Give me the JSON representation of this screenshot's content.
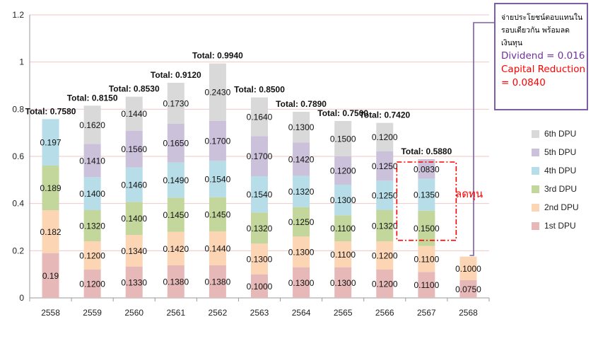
{
  "chart_data": {
    "type": "bar",
    "stacked": true,
    "categories": [
      "2558",
      "2559",
      "2560",
      "2561",
      "2562",
      "2563",
      "2564",
      "2565",
      "2566",
      "2567",
      "2568"
    ],
    "ylim": [
      0,
      1.2
    ],
    "y_ticks": [
      "0",
      "0.2",
      "0.4",
      "0.6",
      "0.8",
      "1",
      "1.2"
    ],
    "grid": true,
    "legend_position": "right",
    "series": [
      {
        "name": "1st DPU",
        "color": "#e6b9b8",
        "values": [
          0.19,
          0.12,
          0.133,
          0.138,
          0.138,
          0.1,
          0.13,
          0.13,
          0.12,
          0.11,
          0.075
        ],
        "labels": [
          "0.19",
          "0.1200",
          "0.1330",
          "0.1380",
          "0.1380",
          "0.1000",
          "0.1300",
          "0.1300",
          "0.1200",
          "0.1100",
          "0.0750"
        ]
      },
      {
        "name": "2nd DPU",
        "color": "#fcd5b5",
        "values": [
          0.182,
          0.12,
          0.134,
          0.142,
          0.144,
          0.13,
          0.13,
          0.11,
          0.12,
          0.11,
          0.1
        ],
        "labels": [
          "0.182",
          "0.1200",
          "0.1340",
          "0.1420",
          "0.1440",
          "0.1300",
          "0.1300",
          "0.1100",
          "0.1200",
          "0.1100",
          "0.1000"
        ]
      },
      {
        "name": "3rd DPU",
        "color": "#c3d69b",
        "values": [
          0.189,
          0.132,
          0.14,
          0.145,
          0.145,
          0.132,
          0.125,
          0.11,
          0.132,
          0.15,
          null
        ],
        "labels": [
          "0.189",
          "0.1320",
          "0.1400",
          "0.1450",
          "0.1450",
          "0.1320",
          "0.1250",
          "0.1100",
          "0.1320",
          "0.1500",
          ""
        ]
      },
      {
        "name": "4th DPU",
        "color": "#b7dee8",
        "values": [
          0.197,
          0.14,
          0.146,
          0.149,
          0.154,
          0.154,
          0.132,
          0.13,
          0.125,
          0.135,
          null
        ],
        "labels": [
          "0.197",
          "0.1400",
          "0.1460",
          "0.1490",
          "0.1540",
          "0.1540",
          "0.1320",
          "0.1300",
          "0.1250",
          "0.1350",
          ""
        ]
      },
      {
        "name": "5th DPU",
        "color": "#ccc1da",
        "values": [
          null,
          0.141,
          0.156,
          0.165,
          0.17,
          0.17,
          0.142,
          0.12,
          0.125,
          0.083,
          null
        ],
        "labels": [
          "",
          "0.1410",
          "0.1560",
          "0.1650",
          "0.1700",
          "0.1700",
          "0.1420",
          "0.1200",
          "0.1250",
          "0.0830",
          ""
        ]
      },
      {
        "name": "6th DPU",
        "color": "#d9d9d9",
        "values": [
          null,
          0.162,
          0.144,
          0.173,
          0.243,
          0.164,
          0.13,
          0.15,
          0.12,
          null,
          null
        ],
        "labels": [
          "",
          "0.1620",
          "0.1440",
          "0.1730",
          "0.2430",
          "0.1640",
          "0.1300",
          "0.1500",
          "0.1200",
          "",
          ""
        ]
      }
    ],
    "totals": [
      0.758,
      0.815,
      0.853,
      0.912,
      0.994,
      0.85,
      0.789,
      0.75,
      0.742,
      0.588,
      null
    ],
    "total_labels": [
      "Total: 0.7580",
      "Total: 0.8150",
      "Total: 0.8530",
      "Total: 0.9120",
      "Total: 0.9940",
      "Total: 0.8500",
      "Total: 0.7890",
      "Total: 0.7500",
      "Total: 0.7420",
      "Total: 0.5880",
      ""
    ]
  },
  "annotation": {
    "note_thai": "จ่ายประโยชน์ตอบแทนใน\nรอบเดียวกัน พร้อมลด\nเงินทุน",
    "dividend_text": "Dividend = 0.016",
    "capital_reduction_text": "Capital Reduction\n= 0.0840",
    "cut_label": "ลดทุน",
    "purple_color": "#7b5ea7",
    "red_color": "#ff0000"
  }
}
